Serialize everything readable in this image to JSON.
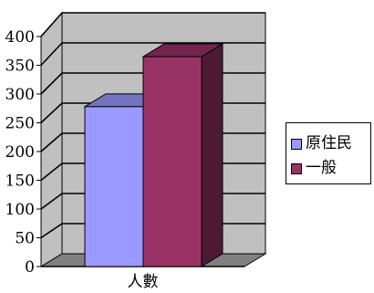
{
  "chart_data": {
    "type": "bar",
    "three_d": true,
    "categories": [
      "人數"
    ],
    "series": [
      {
        "name": "原住民",
        "values": [
          278
        ],
        "color": "#9999ff"
      },
      {
        "name": "一般",
        "values": [
          365
        ],
        "color": "#993366"
      }
    ],
    "ylim": [
      0,
      400
    ],
    "yticks": [
      0,
      50,
      100,
      150,
      200,
      250,
      300,
      350,
      400
    ],
    "title": "",
    "xlabel": "",
    "ylabel": "",
    "grid": true,
    "legend_position": "right",
    "colors": {
      "wall": "#c0c0c0",
      "floor": "#808080",
      "gridline": "#000000"
    }
  }
}
